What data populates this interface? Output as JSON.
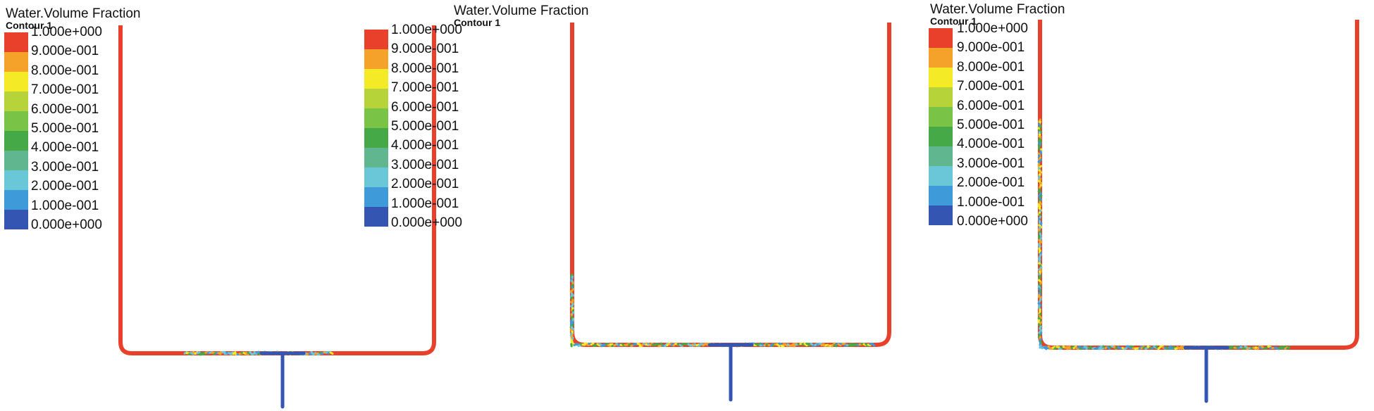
{
  "legend": {
    "title": "Water.Volume Fraction",
    "subtitle": "Contour 1",
    "levels": [
      "1.000e+000",
      "9.000e-001",
      "8.000e-001",
      "7.000e-001",
      "6.000e-001",
      "5.000e-001",
      "4.000e-001",
      "3.000e-001",
      "2.000e-001",
      "1.000e-001",
      "0.000e+000"
    ],
    "colors": [
      "#e8402a",
      "#f5a22a",
      "#f4ea25",
      "#b6d43a",
      "#79c347",
      "#46a948",
      "#5fb68f",
      "#6ac7d8",
      "#3f9ad9",
      "#3555b3"
    ]
  },
  "panels": [
    {
      "id": "panel-1"
    },
    {
      "id": "panel-2"
    },
    {
      "id": "panel-3"
    }
  ],
  "colors": {
    "water": "#e8402a",
    "air": "#3555b3",
    "mix": [
      "#46a948",
      "#f4ea25",
      "#6ac7d8",
      "#f5a22a",
      "#3f9ad9"
    ]
  }
}
